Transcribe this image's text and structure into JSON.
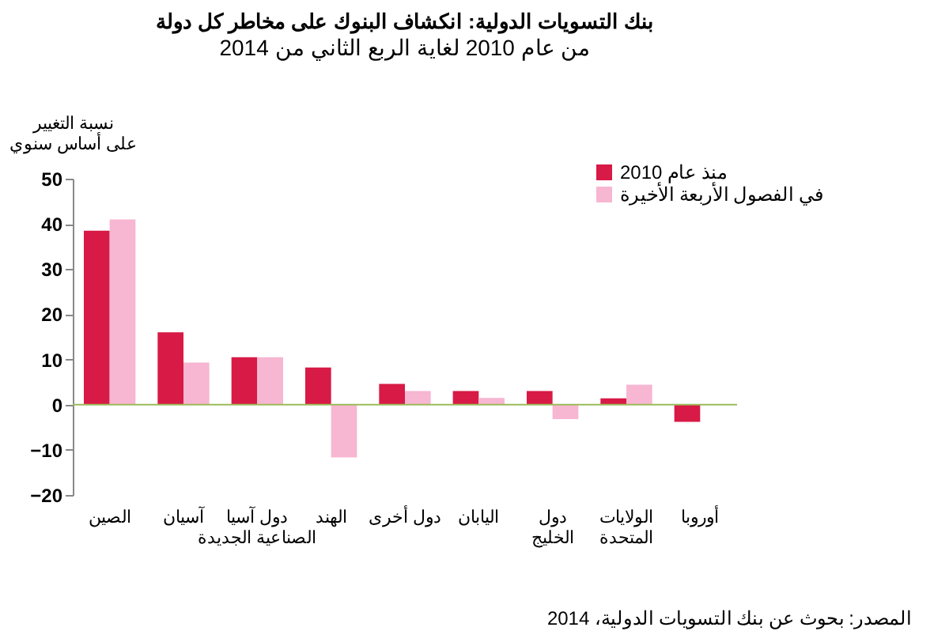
{
  "chart_data": {
    "type": "bar",
    "title": "بنك التسويات الدولية: انكشاف البنوك على مخاطر كل دولة",
    "subtitle": "من عام 2010 لغاية الربع الثاني من 2014",
    "ylabel": "نسبة التغيير\nعلى أساس سنوي",
    "categories": [
      "الصين",
      "آسيان",
      "دول آسيا\nالصناعية الجديدة",
      "الهند",
      "دول أخرى",
      "اليابان",
      "دول\nالخليج",
      "الولايات\nالمتحدة",
      "أوروبا"
    ],
    "series": [
      {
        "name": "منذ عام 2010",
        "color": "#d81a46",
        "values": [
          38.5,
          16,
          10.5,
          8.2,
          4.6,
          3.0,
          3.0,
          1.4,
          -3.8
        ]
      },
      {
        "name": "في الفصول الأربعة الأخيرة",
        "color": "#f7b6d2",
        "values": [
          41,
          9.3,
          10.5,
          -11.7,
          3.0,
          1.5,
          -3.2,
          4.4,
          null
        ]
      }
    ],
    "ylim": [
      -20,
      50
    ],
    "yticks": [
      -20,
      -10,
      0,
      10,
      20,
      30,
      40,
      50
    ],
    "legend": "top right",
    "ref_lines": [
      {
        "axis": "y",
        "value": 0,
        "color": "#9bbb59"
      }
    ],
    "annotations": [
      "المصدر: بحوث عن بنك التسويات الدولية، 2014"
    ]
  }
}
